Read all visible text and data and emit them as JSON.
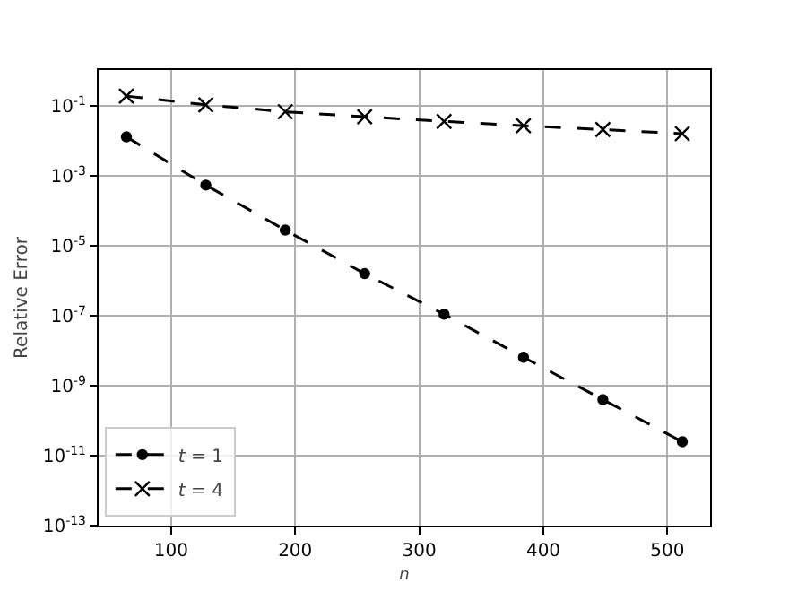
{
  "chart_data": {
    "type": "line",
    "xlabel": "n",
    "ylabel": "Relative Error",
    "x": [
      64,
      128,
      192,
      256,
      320,
      384,
      448,
      512
    ],
    "series": [
      {
        "name": "t = 1",
        "color": "#000000",
        "marker": "circle",
        "values": [
          0.013,
          0.00054,
          2.8e-05,
          1.6e-06,
          1.1e-07,
          6.5e-09,
          4e-10,
          2.5e-11
        ]
      },
      {
        "name": "t = 4",
        "color": "#000000",
        "marker": "cross",
        "values": [
          0.19,
          0.107,
          0.068,
          0.049,
          0.036,
          0.027,
          0.021,
          0.016
        ]
      }
    ],
    "log": "y",
    "line_style": "dashed",
    "grid": true,
    "legend": "bottom left",
    "xlim": [
      41.6,
      534.4
    ],
    "ylim": [
      1e-13,
      1.06
    ],
    "xticks": [
      100,
      200,
      300,
      400,
      500
    ],
    "yticks": [
      {
        "value": 0.1,
        "label": "10$^{-1}$"
      },
      {
        "value": 0.001,
        "label": "10$^{-3}$"
      },
      {
        "value": 1e-05,
        "label": "10$^{-5}$"
      },
      {
        "value": 1e-07,
        "label": "10$^{-7}$"
      },
      {
        "value": 1e-09,
        "label": "10$^{-9}$"
      },
      {
        "value": 1e-11,
        "label": "10$^{-11}$"
      },
      {
        "value": 1e-13,
        "label": "10$^{-13}$"
      }
    ]
  }
}
